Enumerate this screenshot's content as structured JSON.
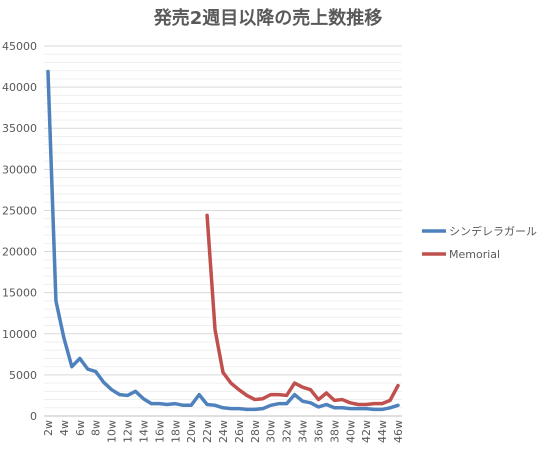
{
  "chart_data": {
    "type": "line",
    "title": "発売2週目以降の売上数推移",
    "ylim": [
      0,
      45000
    ],
    "yticks": [
      0,
      5000,
      10000,
      15000,
      20000,
      25000,
      30000,
      35000,
      40000,
      45000
    ],
    "grid": true,
    "legend_position": "right",
    "x": [
      "2w",
      "3w",
      "4w",
      "5w",
      "6w",
      "7w",
      "8w",
      "9w",
      "10w",
      "11w",
      "12w",
      "13w",
      "14w",
      "15w",
      "16w",
      "17w",
      "18w",
      "19w",
      "20w",
      "21w",
      "22w",
      "23w",
      "24w",
      "25w",
      "26w",
      "27w",
      "28w",
      "29w",
      "30w",
      "31w",
      "32w",
      "33w",
      "34w",
      "35w",
      "36w",
      "37w",
      "38w",
      "39w",
      "40w",
      "41w",
      "42w",
      "43w",
      "44w",
      "45w",
      "46w"
    ],
    "x_tick_labels": [
      "2w",
      "4w",
      "6w",
      "8w",
      "10w",
      "12w",
      "14w",
      "16w",
      "18w",
      "20w",
      "22w",
      "24w",
      "26w",
      "28w",
      "30w",
      "32w",
      "34w",
      "36w",
      "38w",
      "40w",
      "42w",
      "44w",
      "46w"
    ],
    "series": [
      {
        "name": "シンデレラガール",
        "color": "#4f81bd",
        "values": [
          41900,
          14000,
          9500,
          6000,
          7000,
          5700,
          5400,
          4100,
          3200,
          2600,
          2500,
          3000,
          2100,
          1500,
          1500,
          1400,
          1500,
          1300,
          1300,
          2600,
          1400,
          1300,
          1000,
          900,
          900,
          800,
          800,
          900,
          1300,
          1500,
          1500,
          2600,
          1800,
          1600,
          1100,
          1400,
          1000,
          1000,
          900,
          900,
          900,
          800,
          800,
          1000,
          1300
        ]
      },
      {
        "name": "Memorial",
        "color": "#c0504d",
        "values": [
          null,
          null,
          null,
          null,
          null,
          null,
          null,
          null,
          null,
          null,
          null,
          null,
          null,
          null,
          null,
          null,
          null,
          null,
          null,
          null,
          24400,
          10500,
          5300,
          4000,
          3200,
          2500,
          2000,
          2100,
          2600,
          2600,
          2500,
          4000,
          3500,
          3200,
          2000,
          2800,
          1900,
          2000,
          1600,
          1400,
          1400,
          1500,
          1500,
          1900,
          3700
        ]
      }
    ]
  }
}
